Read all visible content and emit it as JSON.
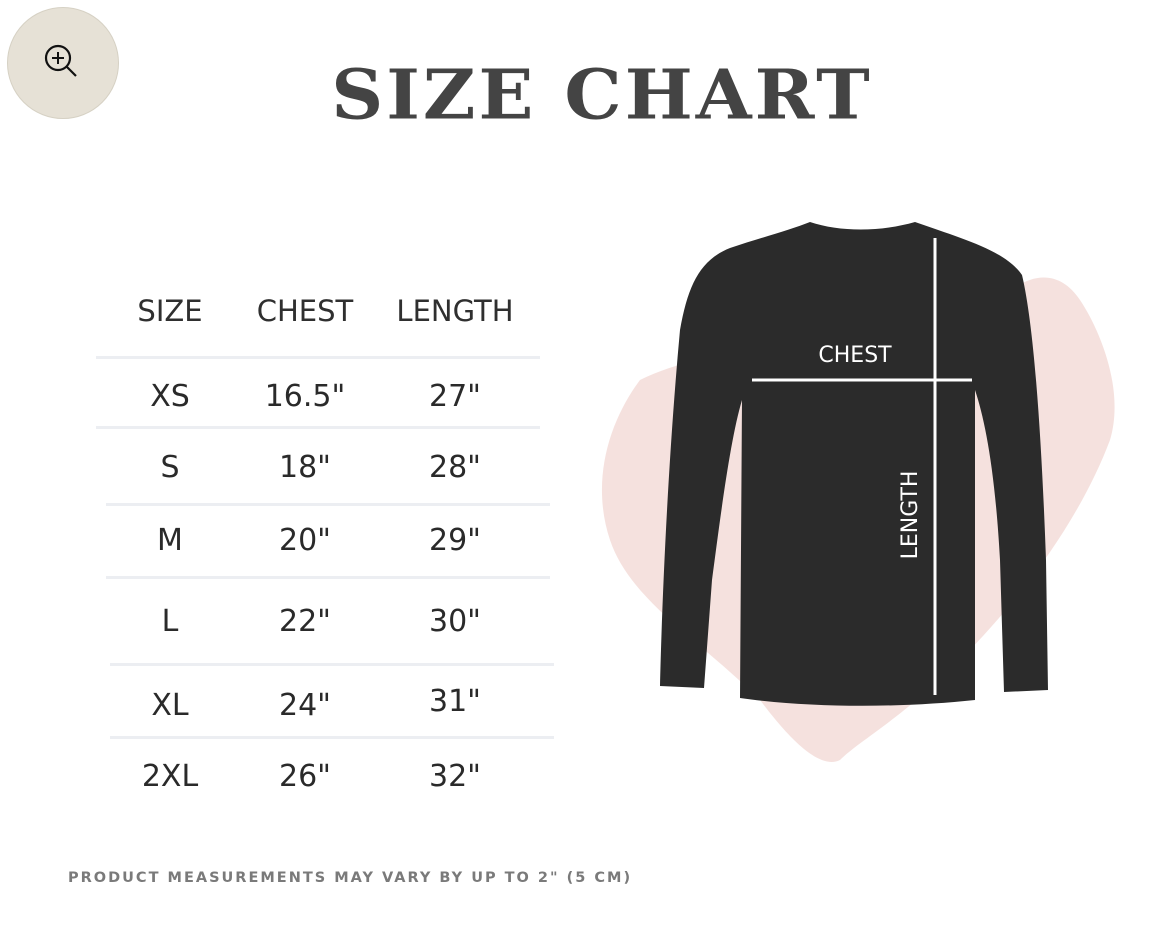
{
  "zoom_button": {
    "icon": "zoom-in-icon"
  },
  "title": "SIZE CHART",
  "table": {
    "headers": [
      "SIZE",
      "CHEST",
      "LENGTH"
    ],
    "rows": [
      [
        "XS",
        "16.5\"",
        "27\""
      ],
      [
        "S",
        "18\"",
        "28\""
      ],
      [
        "M",
        "20\"",
        "29\""
      ],
      [
        "L",
        "22\"",
        "30\""
      ],
      [
        "XL",
        "24\"",
        "31\""
      ],
      [
        "2XL",
        "26\"",
        "32\""
      ]
    ]
  },
  "diagram": {
    "chest_label": "CHEST",
    "length_label": "LENGTH",
    "shirt_color": "#2b2b2b",
    "splash_color": "#f3dcd8"
  },
  "note": "PRODUCT MEASUREMENTS MAY VARY BY UP TO 2\" (5 CM)"
}
